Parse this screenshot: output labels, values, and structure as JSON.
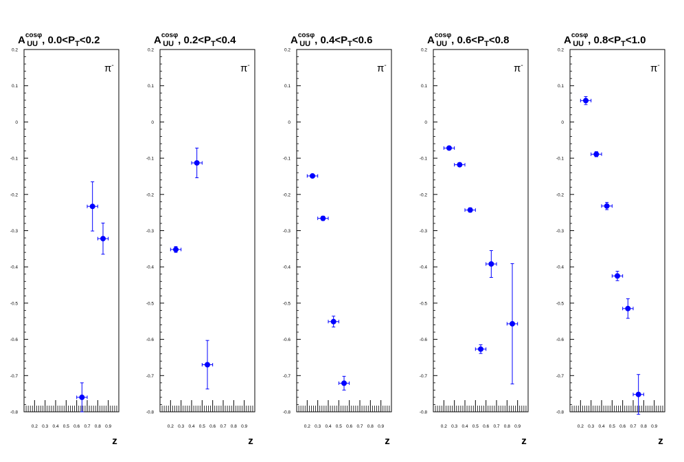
{
  "chart_data": [
    {
      "type": "scatter",
      "title": {
        "main": "A",
        "sup": "cosφ",
        "sub": "UU",
        "pt_pre": ", 0.0<P",
        "pt_sub": "T",
        "pt_post": "<0.2"
      },
      "annotation": "π",
      "annotation_sup": "-",
      "xlabel": "z",
      "xlim": [
        0.1,
        1.0
      ],
      "ylim": [
        -0.8,
        0.2
      ],
      "points": [
        {
          "x": 0.65,
          "y": -0.76,
          "xerr": 0.05,
          "yerr": 0.04
        },
        {
          "x": 0.75,
          "y": -0.233,
          "xerr": 0.05,
          "yerr": 0.068
        },
        {
          "x": 0.85,
          "y": -0.322,
          "xerr": 0.05,
          "yerr": 0.043
        }
      ]
    },
    {
      "type": "scatter",
      "title": {
        "main": "A",
        "sup": "cosφ",
        "sub": "UU",
        "pt_pre": ", 0.2<P",
        "pt_sub": "T",
        "pt_post": "<0.4"
      },
      "annotation": "π",
      "annotation_sup": "-",
      "xlabel": "z",
      "xlim": [
        0.1,
        1.0
      ],
      "ylim": [
        -0.8,
        0.2
      ],
      "points": [
        {
          "x": 0.25,
          "y": -0.352,
          "xerr": 0.05,
          "yerr": 0.008
        },
        {
          "x": 0.45,
          "y": -0.113,
          "xerr": 0.05,
          "yerr": 0.041
        },
        {
          "x": 0.55,
          "y": -0.67,
          "xerr": 0.05,
          "yerr": 0.067
        }
      ]
    },
    {
      "type": "scatter",
      "title": {
        "main": "A",
        "sup": "cosφ",
        "sub": "UU",
        "pt_pre": ", 0.4<P",
        "pt_sub": "T",
        "pt_post": "<0.6"
      },
      "annotation": "π",
      "annotation_sup": "-",
      "xlabel": "z",
      "xlim": [
        0.1,
        1.0
      ],
      "ylim": [
        -0.8,
        0.2
      ],
      "points": [
        {
          "x": 0.25,
          "y": -0.149,
          "xerr": 0.05,
          "yerr": 0.005
        },
        {
          "x": 0.35,
          "y": -0.266,
          "xerr": 0.05,
          "yerr": 0.006
        },
        {
          "x": 0.45,
          "y": -0.551,
          "xerr": 0.05,
          "yerr": 0.015
        },
        {
          "x": 0.55,
          "y": -0.721,
          "xerr": 0.05,
          "yerr": 0.019
        }
      ]
    },
    {
      "type": "scatter",
      "title": {
        "main": "A",
        "sup": "cosφ",
        "sub": "UU",
        "pt_pre": ", 0.6<P",
        "pt_sub": "T",
        "pt_post": "<0.8"
      },
      "annotation": "π",
      "annotation_sup": "-",
      "xlabel": "z",
      "xlim": [
        0.1,
        1.0
      ],
      "ylim": [
        -0.8,
        0.2
      ],
      "points": [
        {
          "x": 0.25,
          "y": -0.072,
          "xerr": 0.05,
          "yerr": 0.004
        },
        {
          "x": 0.35,
          "y": -0.118,
          "xerr": 0.05,
          "yerr": 0.005
        },
        {
          "x": 0.45,
          "y": -0.243,
          "xerr": 0.05,
          "yerr": 0.006
        },
        {
          "x": 0.55,
          "y": -0.627,
          "xerr": 0.05,
          "yerr": 0.012
        },
        {
          "x": 0.65,
          "y": -0.392,
          "xerr": 0.05,
          "yerr": 0.037
        },
        {
          "x": 0.85,
          "y": -0.557,
          "xerr": 0.05,
          "yerr": 0.166
        }
      ]
    },
    {
      "type": "scatter",
      "title": {
        "main": "A",
        "sup": "cosφ",
        "sub": "UU",
        "pt_pre": ", 0.8<P",
        "pt_sub": "T",
        "pt_post": "<1.0"
      },
      "annotation": "π",
      "annotation_sup": "-",
      "xlabel": "z",
      "xlim": [
        0.1,
        1.0
      ],
      "ylim": [
        -0.8,
        0.2
      ],
      "points": [
        {
          "x": 0.25,
          "y": 0.059,
          "xerr": 0.05,
          "yerr": 0.011
        },
        {
          "x": 0.35,
          "y": -0.089,
          "xerr": 0.05,
          "yerr": 0.007
        },
        {
          "x": 0.45,
          "y": -0.232,
          "xerr": 0.05,
          "yerr": 0.01
        },
        {
          "x": 0.55,
          "y": -0.425,
          "xerr": 0.05,
          "yerr": 0.013
        },
        {
          "x": 0.65,
          "y": -0.515,
          "xerr": 0.05,
          "yerr": 0.027
        },
        {
          "x": 0.75,
          "y": -0.752,
          "xerr": 0.05,
          "yerr": 0.055
        }
      ]
    }
  ],
  "axis": {
    "y_ticks": [
      "0.2",
      "0.1",
      "0",
      "-0.1",
      "-0.2",
      "-0.3",
      "-0.4",
      "-0.5",
      "-0.6",
      "-0.7",
      "-0.8"
    ],
    "x_ticks": [
      "0.2",
      "0.3",
      "0.4",
      "0.5",
      "0.6",
      "0.7",
      "0.8",
      "0.9"
    ]
  },
  "colors": {
    "marker": "#0000ff",
    "frame": "#000000",
    "background": "#ffffff"
  }
}
